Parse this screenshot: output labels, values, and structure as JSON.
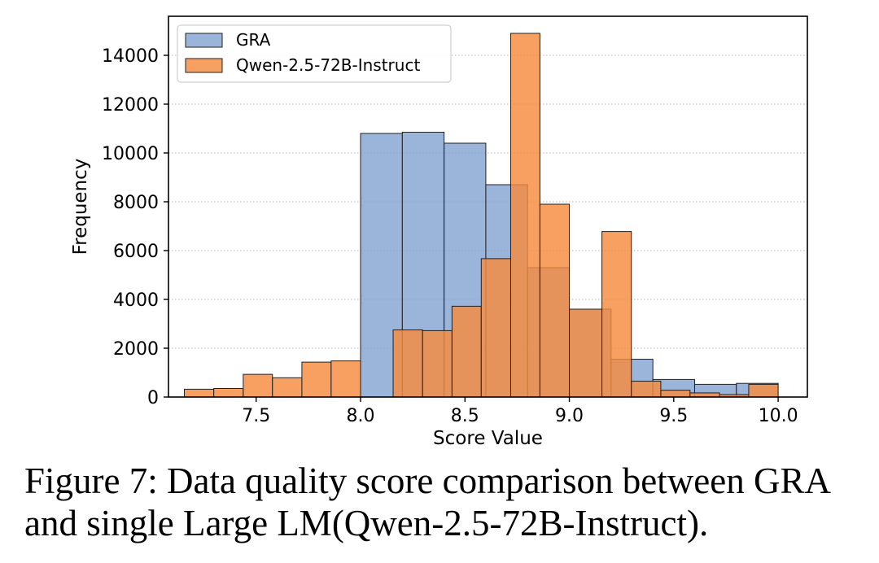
{
  "chart_data": {
    "type": "bar",
    "xlabel": "Score Value",
    "ylabel": "Frequency",
    "xlim": [
      7.08,
      10.14
    ],
    "ylim": [
      0,
      15600
    ],
    "xticks": [
      7.5,
      8.0,
      8.5,
      9.0,
      9.5,
      10.0
    ],
    "xtick_labels": [
      "7.5",
      "8.0",
      "8.5",
      "9.0",
      "9.5",
      "10.0"
    ],
    "yticks": [
      0,
      2000,
      4000,
      6000,
      8000,
      10000,
      12000,
      14000
    ],
    "ytick_labels": [
      "0",
      "2000",
      "4000",
      "6000",
      "8000",
      "10000",
      "12000",
      "14000"
    ],
    "grid": "horizontal dotted",
    "legend_position": "top-left",
    "series": [
      {
        "name": "GRA",
        "color": "#7e9fd0",
        "bins": [
          {
            "x0": 8.0,
            "x1": 8.2,
            "value": 10800
          },
          {
            "x0": 8.2,
            "x1": 8.4,
            "value": 10850
          },
          {
            "x0": 8.4,
            "x1": 8.6,
            "value": 10400
          },
          {
            "x0": 8.6,
            "x1": 8.8,
            "value": 8700
          },
          {
            "x0": 8.8,
            "x1": 9.0,
            "value": 5300
          },
          {
            "x0": 9.0,
            "x1": 9.2,
            "value": 3600
          },
          {
            "x0": 9.2,
            "x1": 9.4,
            "value": 1550
          },
          {
            "x0": 9.4,
            "x1": 9.6,
            "value": 720
          },
          {
            "x0": 9.6,
            "x1": 9.8,
            "value": 520
          },
          {
            "x0": 9.8,
            "x1": 10.0,
            "value": 560
          }
        ]
      },
      {
        "name": "Qwen-2.5-72B-Instruct",
        "color": "#f58b3e",
        "bins": [
          {
            "x0": 7.156,
            "x1": 7.297,
            "value": 320
          },
          {
            "x0": 7.297,
            "x1": 7.438,
            "value": 350
          },
          {
            "x0": 7.438,
            "x1": 7.578,
            "value": 930
          },
          {
            "x0": 7.578,
            "x1": 7.719,
            "value": 790
          },
          {
            "x0": 7.719,
            "x1": 7.859,
            "value": 1430
          },
          {
            "x0": 7.859,
            "x1": 8.0,
            "value": 1480
          },
          {
            "x0": 8.156,
            "x1": 8.297,
            "value": 2750
          },
          {
            "x0": 8.297,
            "x1": 8.438,
            "value": 2720
          },
          {
            "x0": 8.438,
            "x1": 8.578,
            "value": 3720
          },
          {
            "x0": 8.578,
            "x1": 8.719,
            "value": 5670
          },
          {
            "x0": 8.719,
            "x1": 8.859,
            "value": 14900
          },
          {
            "x0": 8.859,
            "x1": 9.0,
            "value": 7900
          },
          {
            "x0": 9.0,
            "x1": 9.156,
            "value": 3600
          },
          {
            "x0": 9.156,
            "x1": 9.297,
            "value": 6780
          },
          {
            "x0": 9.297,
            "x1": 9.438,
            "value": 650
          },
          {
            "x0": 9.438,
            "x1": 9.578,
            "value": 280
          },
          {
            "x0": 9.578,
            "x1": 9.719,
            "value": 170
          },
          {
            "x0": 9.719,
            "x1": 9.859,
            "value": 100
          },
          {
            "x0": 9.859,
            "x1": 10.0,
            "value": 520
          }
        ]
      }
    ]
  },
  "caption": {
    "line1": "Figure 7: Data quality score comparison between GRA",
    "line2": "and single Large LM(Qwen-2.5-72B-Instruct)."
  }
}
